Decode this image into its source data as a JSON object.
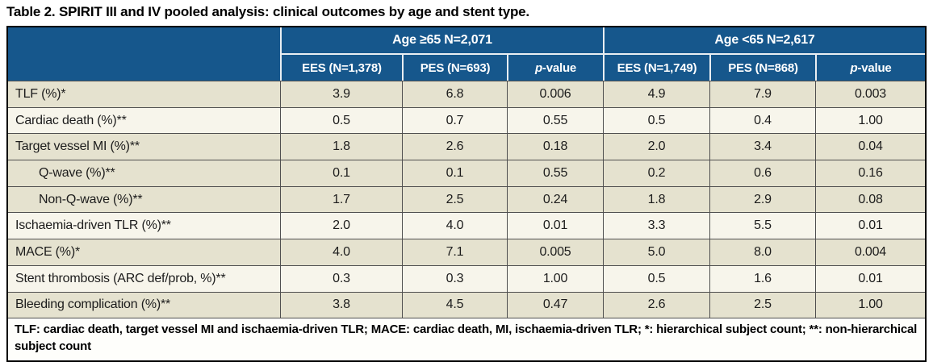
{
  "title": "Table 2. SPIRIT III and IV pooled analysis: clinical outcomes by age and stent type.",
  "table": {
    "pvalue": {
      "italic": "p",
      "rest": "-value"
    },
    "groups": [
      {
        "label": "Age ≥65 N=2,071",
        "cols": [
          "EES (N=1,378)",
          "PES (N=693)"
        ]
      },
      {
        "label": "Age <65 N=2,617",
        "cols": [
          "EES (N=1,749)",
          "PES (N=868)"
        ]
      }
    ],
    "rows": [
      {
        "label": "TLF (%)*",
        "v": [
          "3.9",
          "6.8",
          "0.006",
          "4.9",
          "7.9",
          "0.003"
        ]
      },
      {
        "label": "Cardiac death (%)**",
        "v": [
          "0.5",
          "0.7",
          "0.55",
          "0.5",
          "0.4",
          "1.00"
        ]
      },
      {
        "label": "Target vessel MI (%)**",
        "v": [
          "1.8",
          "2.6",
          "0.18",
          "2.0",
          "3.4",
          "0.04"
        ]
      },
      {
        "label": "Q-wave (%)**",
        "v": [
          "0.1",
          "0.1",
          "0.55",
          "0.2",
          "0.6",
          "0.16"
        ]
      },
      {
        "label": "Non-Q-wave (%)**",
        "v": [
          "1.7",
          "2.5",
          "0.24",
          "1.8",
          "2.9",
          "0.08"
        ]
      },
      {
        "label": "Ischaemia-driven TLR (%)**",
        "v": [
          "2.0",
          "4.0",
          "0.01",
          "3.3",
          "5.5",
          "0.01"
        ]
      },
      {
        "label": "MACE (%)*",
        "v": [
          "4.0",
          "7.1",
          "0.005",
          "5.0",
          "8.0",
          "0.004"
        ]
      },
      {
        "label": "Stent thrombosis (ARC def/prob, %)**",
        "v": [
          "0.3",
          "0.3",
          "1.00",
          "0.5",
          "1.6",
          "0.01"
        ]
      },
      {
        "label": "Bleeding complication (%)**",
        "v": [
          "3.8",
          "4.5",
          "0.47",
          "2.6",
          "2.5",
          "1.00"
        ]
      }
    ],
    "footnote": "TLF: cardiac death, target vessel MI and ischaemia-driven TLR; MACE: cardiac death, MI, ischaemia-driven TLR; *: hierarchical subject count; **: non-hierarchical subject count"
  },
  "colors": {
    "header_blue": "#16578C",
    "row_beige": "#E5E2CF",
    "row_cream": "#F7F5EB",
    "border_dark": "#4f4f4f",
    "header_separator": "#E9EEF2"
  },
  "chart_data": {
    "type": "table",
    "title": "Table 2. SPIRIT III and IV pooled analysis: clinical outcomes by age and stent type.",
    "column_groups": [
      "Age ≥65 N=2,071",
      "Age <65 N=2,617"
    ],
    "columns": [
      "EES (N=1,378)",
      "PES (N=693)",
      "p-value",
      "EES (N=1,749)",
      "PES (N=868)",
      "p-value"
    ],
    "rows": [
      [
        "TLF (%)*",
        3.9,
        6.8,
        0.006,
        4.9,
        7.9,
        0.003
      ],
      [
        "Cardiac death (%)**",
        0.5,
        0.7,
        0.55,
        0.5,
        0.4,
        1.0
      ],
      [
        "Target vessel MI (%)**",
        1.8,
        2.6,
        0.18,
        2.0,
        3.4,
        0.04
      ],
      [
        "Q-wave (%)**",
        0.1,
        0.1,
        0.55,
        0.2,
        0.6,
        0.16
      ],
      [
        "Non-Q-wave (%)**",
        1.7,
        2.5,
        0.24,
        1.8,
        2.9,
        0.08
      ],
      [
        "Ischaemia-driven TLR (%)**",
        2.0,
        4.0,
        0.01,
        3.3,
        5.5,
        0.01
      ],
      [
        "MACE (%)*",
        4.0,
        7.1,
        0.005,
        5.0,
        8.0,
        0.004
      ],
      [
        "Stent thrombosis (ARC def/prob, %)**",
        0.3,
        0.3,
        1.0,
        0.5,
        1.6,
        0.01
      ],
      [
        "Bleeding complication (%)**",
        3.8,
        4.5,
        0.47,
        2.6,
        2.5,
        1.0
      ]
    ]
  }
}
